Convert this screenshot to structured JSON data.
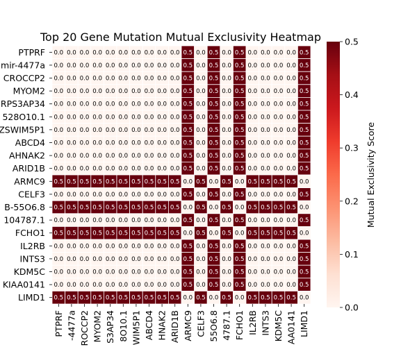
{
  "chart_data": {
    "type": "heatmap",
    "title": "Top 20 Gene Mutation Mutual Exclusivity Heatmap",
    "genes": [
      "PTPRF",
      "mir-4477a",
      "CROCCP2",
      "MYOM2",
      "RPS3AP34",
      "528O10.1",
      "ZSWIM5P1",
      "ABCD4",
      "AHNAK2",
      "ARID1B",
      "ARMC9",
      "CELF3",
      "B-55O6.8",
      "104787.1",
      "FCHO1",
      "IL2RB",
      "INTS3",
      "KDM5C",
      "KIAA0141",
      "LIMD1"
    ],
    "col_labels": [
      "PTPRF",
      "-4477a",
      "ROCCP2",
      "MYOM2",
      "S3AP34",
      "8O10.1",
      "WIM5P1",
      "ABCD4",
      "HNAK2",
      "ARID1B",
      "ARMC9",
      "CELF3",
      "55O6.8",
      "4787.1",
      "FCHO1",
      "IL2RB",
      "INTS3",
      "KDM5C",
      "AA0141",
      "LIMD1"
    ],
    "group_flags": [
      0,
      0,
      0,
      0,
      0,
      0,
      0,
      0,
      0,
      0,
      1,
      0,
      1,
      0,
      1,
      0,
      0,
      0,
      0,
      1
    ],
    "celf3_index": 11,
    "values": [
      [
        0,
        0,
        0,
        0,
        0,
        0,
        0,
        0,
        0,
        0,
        0.5,
        0,
        0.5,
        0,
        0.5,
        0,
        0,
        0,
        0,
        0.5
      ],
      [
        0,
        0,
        0,
        0,
        0,
        0,
        0,
        0,
        0,
        0,
        0.5,
        0,
        0.5,
        0,
        0.5,
        0,
        0,
        0,
        0,
        0.5
      ],
      [
        0,
        0,
        0,
        0,
        0,
        0,
        0,
        0,
        0,
        0,
        0.5,
        0,
        0.5,
        0,
        0.5,
        0,
        0,
        0,
        0,
        0.5
      ],
      [
        0,
        0,
        0,
        0,
        0,
        0,
        0,
        0,
        0,
        0,
        0.5,
        0,
        0.5,
        0,
        0.5,
        0,
        0,
        0,
        0,
        0.5
      ],
      [
        0,
        0,
        0,
        0,
        0,
        0,
        0,
        0,
        0,
        0,
        0.5,
        0,
        0.5,
        0,
        0.5,
        0,
        0,
        0,
        0,
        0.5
      ],
      [
        0,
        0,
        0,
        0,
        0,
        0,
        0,
        0,
        0,
        0,
        0.5,
        0,
        0.5,
        0,
        0.5,
        0,
        0,
        0,
        0,
        0.5
      ],
      [
        0,
        0,
        0,
        0,
        0,
        0,
        0,
        0,
        0,
        0,
        0.5,
        0,
        0.5,
        0,
        0.5,
        0,
        0,
        0,
        0,
        0.5
      ],
      [
        0,
        0,
        0,
        0,
        0,
        0,
        0,
        0,
        0,
        0,
        0.5,
        0,
        0.5,
        0,
        0.5,
        0,
        0,
        0,
        0,
        0.5
      ],
      [
        0,
        0,
        0,
        0,
        0,
        0,
        0,
        0,
        0,
        0,
        0.5,
        0,
        0.5,
        0,
        0.5,
        0,
        0,
        0,
        0,
        0.5
      ],
      [
        0,
        0,
        0,
        0,
        0,
        0,
        0,
        0,
        0,
        0,
        0.5,
        0,
        0.5,
        0,
        0.5,
        0,
        0,
        0,
        0,
        0.5
      ],
      [
        0.5,
        0.5,
        0.5,
        0.5,
        0.5,
        0.5,
        0.5,
        0.5,
        0.5,
        0.5,
        0,
        0.5,
        0,
        0.5,
        0,
        0.5,
        0.5,
        0.5,
        0.5,
        0
      ],
      [
        0,
        0,
        0,
        0,
        0,
        0,
        0,
        0,
        0,
        0,
        0.5,
        0,
        0.5,
        0,
        0.5,
        0,
        0,
        0,
        0,
        0.5
      ],
      [
        0.5,
        0.5,
        0.5,
        0.5,
        0.5,
        0.5,
        0.5,
        0.5,
        0.5,
        0.5,
        0,
        0.5,
        0,
        0.5,
        0,
        0.5,
        0.5,
        0.5,
        0.5,
        0
      ],
      [
        0,
        0,
        0,
        0,
        0,
        0,
        0,
        0,
        0,
        0,
        0.5,
        0,
        0.5,
        0,
        0.5,
        0,
        0,
        0,
        0,
        0.5
      ],
      [
        0.5,
        0.5,
        0.5,
        0.5,
        0.5,
        0.5,
        0.5,
        0.5,
        0.5,
        0.5,
        0,
        0.5,
        0,
        0.5,
        0,
        0.5,
        0.5,
        0.5,
        0.5,
        0
      ],
      [
        0,
        0,
        0,
        0,
        0,
        0,
        0,
        0,
        0,
        0,
        0.5,
        0,
        0.5,
        0,
        0.5,
        0,
        0,
        0,
        0,
        0.5
      ],
      [
        0,
        0,
        0,
        0,
        0,
        0,
        0,
        0,
        0,
        0,
        0.5,
        0,
        0.5,
        0,
        0.5,
        0,
        0,
        0,
        0,
        0.5
      ],
      [
        0,
        0,
        0,
        0,
        0,
        0,
        0,
        0,
        0,
        0,
        0.5,
        0,
        0.5,
        0,
        0.5,
        0,
        0,
        0,
        0,
        0.5
      ],
      [
        0,
        0,
        0,
        0,
        0,
        0,
        0,
        0,
        0,
        0,
        0.5,
        0,
        0.5,
        0,
        0.5,
        0,
        0,
        0,
        0,
        0.5
      ],
      [
        0.5,
        0.5,
        0.5,
        0.5,
        0.5,
        0.5,
        0.5,
        0.5,
        0.5,
        0.5,
        0,
        0.5,
        0,
        0.5,
        0,
        0.5,
        0.5,
        0.5,
        0.5,
        0
      ]
    ],
    "colorbar": {
      "label": "Mutual Exclusivity Score",
      "range": [
        0.0,
        0.5
      ],
      "ticks": [
        "0.0",
        "0.1",
        "0.2",
        "0.3",
        "0.4",
        "0.5"
      ],
      "colormap": "Reds",
      "low_color": "#fff5f0",
      "high_color": "#67000d"
    },
    "cell_labels_format": "1 decimal",
    "cell_text_light": "#ffffff",
    "cell_text_dark": "#000000"
  }
}
